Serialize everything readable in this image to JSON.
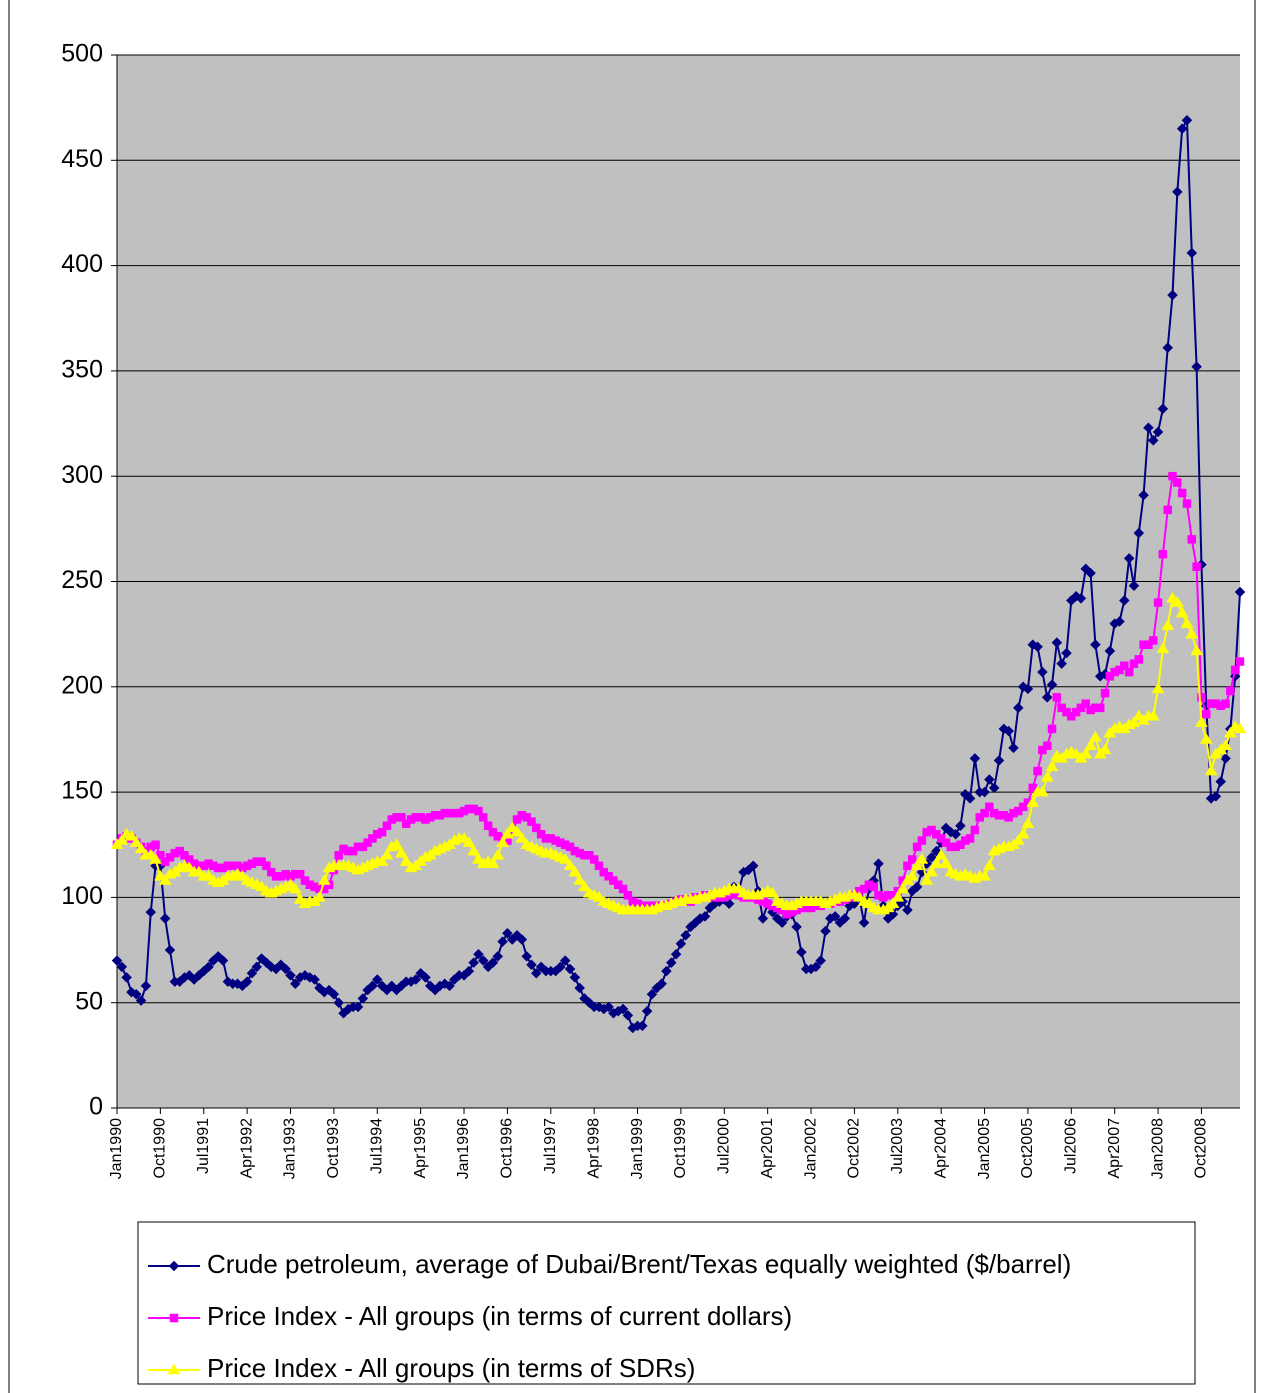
{
  "chart_data": {
    "type": "line",
    "categories": [
      "Jan1990",
      null,
      null,
      null,
      null,
      null,
      null,
      null,
      null,
      "Oct1990",
      null,
      null,
      null,
      null,
      null,
      null,
      null,
      null,
      "Jul1991",
      null,
      null,
      null,
      null,
      null,
      null,
      null,
      null,
      "Apr1992",
      null,
      null,
      null,
      null,
      null,
      null,
      null,
      null,
      "Jan1993",
      null,
      null,
      null,
      null,
      null,
      null,
      null,
      null,
      "Oct1993",
      null,
      null,
      null,
      null,
      null,
      null,
      null,
      null,
      "Jul1994",
      null,
      null,
      null,
      null,
      null,
      null,
      null,
      null,
      "Apr1995",
      null,
      null,
      null,
      null,
      null,
      null,
      null,
      null,
      "Jan1996",
      null,
      null,
      null,
      null,
      null,
      null,
      null,
      null,
      "Oct1996",
      null,
      null,
      null,
      null,
      null,
      null,
      null,
      null,
      "Jul1997",
      null,
      null,
      null,
      null,
      null,
      null,
      null,
      null,
      "Apr1998",
      null,
      null,
      null,
      null,
      null,
      null,
      null,
      null,
      "Jan1999",
      null,
      null,
      null,
      null,
      null,
      null,
      null,
      null,
      "Oct1999",
      null,
      null,
      null,
      null,
      null,
      null,
      null,
      null,
      "Jul2000",
      null,
      null,
      null,
      null,
      null,
      null,
      null,
      null,
      "Apr2001",
      null,
      null,
      null,
      null,
      null,
      null,
      null,
      null,
      "Jan2002",
      null,
      null,
      null,
      null,
      null,
      null,
      null,
      null,
      "Oct2002",
      null,
      null,
      null,
      null,
      null,
      null,
      null,
      null,
      "Jul2003",
      null,
      null,
      null,
      null,
      null,
      null,
      null,
      null,
      "Apr2004",
      null,
      null,
      null,
      null,
      null,
      null,
      null,
      null,
      "Jan2005",
      null,
      null,
      null,
      null,
      null,
      null,
      null,
      null,
      "Oct2005",
      null,
      null,
      null,
      null,
      null,
      null,
      null,
      null,
      "Jul2006",
      null,
      null,
      null,
      null,
      null,
      null,
      null,
      null,
      "Apr2007",
      null,
      null,
      null,
      null,
      null,
      null,
      null,
      null,
      "Jan2008",
      null,
      null,
      null,
      null,
      null,
      null,
      null,
      null,
      "Oct2008",
      null,
      null,
      null,
      null,
      null,
      null,
      null,
      null
    ],
    "series": [
      {
        "name": "Crude petroleum, average of Dubai/Brent/Texas equally weighted ($/barrel)",
        "color": "#000080",
        "marker": "diamond",
        "values": [
          70,
          67,
          62,
          55,
          54,
          51,
          58,
          93,
          115,
          115,
          90,
          75,
          60,
          60,
          62,
          63,
          61,
          63,
          65,
          67,
          70,
          72,
          70,
          60,
          59,
          59,
          58,
          60,
          64,
          67,
          71,
          69,
          67,
          66,
          68,
          66,
          63,
          59,
          62,
          63,
          62,
          61,
          57,
          55,
          56,
          54,
          50,
          45,
          47,
          48,
          48,
          52,
          56,
          58,
          61,
          58,
          56,
          58,
          56,
          58,
          60,
          60,
          61,
          64,
          62,
          58,
          56,
          58,
          59,
          58,
          61,
          63,
          63,
          65,
          69,
          73,
          70,
          67,
          69,
          72,
          79,
          83,
          80,
          82,
          80,
          72,
          68,
          64,
          67,
          65,
          65,
          65,
          67,
          70,
          66,
          62,
          57,
          52,
          50,
          48,
          48,
          47,
          48,
          45,
          46,
          47,
          44,
          38,
          39,
          39,
          46,
          54,
          57,
          59,
          65,
          69,
          73,
          78,
          82,
          86,
          88,
          90,
          91,
          95,
          97,
          98,
          99,
          97,
          105,
          103,
          112,
          113,
          115,
          103,
          90,
          97,
          93,
          90,
          88,
          91,
          92,
          86,
          74,
          66,
          66,
          67,
          70,
          84,
          90,
          91,
          88,
          90,
          96,
          97,
          100,
          88,
          104,
          108,
          116,
          96,
          90,
          92,
          96,
          98,
          94,
          103,
          105,
          112,
          116,
          119,
          122,
          126,
          133,
          131,
          130,
          134,
          149,
          147,
          166,
          150,
          150,
          156,
          152,
          165,
          180,
          179,
          171,
          190,
          200,
          199,
          220,
          219,
          207,
          195,
          201,
          221,
          211,
          216,
          241,
          243,
          242,
          256,
          254,
          220,
          205,
          206,
          217,
          230,
          231,
          241,
          261,
          248,
          273,
          291,
          323,
          317,
          321,
          332,
          361,
          386,
          435,
          465,
          469,
          406,
          352,
          258,
          191,
          147,
          148,
          155,
          166,
          180,
          205,
          245
        ]
      },
      {
        "name": "Price Index - All groups (in terms of current dollars)",
        "color": "#ff00ff",
        "marker": "square",
        "values": [
          125,
          128,
          129,
          128,
          126,
          124,
          122,
          124,
          125,
          120,
          117,
          119,
          121,
          122,
          120,
          118,
          116,
          115,
          115,
          116,
          115,
          114,
          114,
          115,
          115,
          115,
          114,
          115,
          116,
          117,
          117,
          115,
          112,
          110,
          110,
          111,
          110,
          111,
          111,
          108,
          106,
          105,
          104,
          104,
          106,
          113,
          120,
          123,
          122,
          122,
          124,
          124,
          126,
          128,
          130,
          131,
          134,
          137,
          138,
          138,
          135,
          137,
          138,
          138,
          137,
          138,
          139,
          139,
          140,
          140,
          140,
          140,
          141,
          142,
          142,
          141,
          138,
          134,
          131,
          129,
          128,
          127,
          131,
          137,
          139,
          138,
          136,
          133,
          130,
          128,
          128,
          127,
          126,
          125,
          124,
          122,
          121,
          120,
          120,
          118,
          115,
          112,
          110,
          108,
          106,
          104,
          101,
          98,
          97,
          96,
          96,
          96,
          96,
          96,
          96,
          97,
          98,
          99,
          99,
          98,
          100,
          100,
          101,
          101,
          100,
          100,
          100,
          101,
          102,
          101,
          100,
          100,
          100,
          99,
          98,
          97,
          96,
          95,
          94,
          92,
          93,
          94,
          95,
          95,
          95,
          96,
          96,
          97,
          97,
          98,
          98,
          99,
          100,
          101,
          103,
          104,
          106,
          105,
          101,
          100,
          101,
          101,
          103,
          108,
          115,
          118,
          124,
          127,
          131,
          132,
          130,
          128,
          126,
          124,
          124,
          125,
          127,
          128,
          132,
          138,
          140,
          143,
          140,
          139,
          139,
          138,
          140,
          141,
          143,
          145,
          152,
          160,
          170,
          172,
          180,
          195,
          190,
          188,
          186,
          188,
          190,
          192,
          189,
          190,
          190,
          197,
          205,
          207,
          208,
          210,
          207,
          211,
          213,
          220,
          220,
          222,
          240,
          263,
          284,
          300,
          297,
          292,
          287,
          270,
          257,
          195,
          187,
          192,
          192,
          191,
          192,
          198,
          208,
          212
        ]
      },
      {
        "name": "Price Index - All groups (in terms of SDRs)",
        "color": "#ffff00",
        "marker": "triangle",
        "values": [
          125,
          127,
          130,
          129,
          126,
          123,
          120,
          120,
          118,
          110,
          108,
          111,
          112,
          114,
          115,
          114,
          112,
          112,
          110,
          110,
          108,
          107,
          108,
          110,
          110,
          111,
          110,
          108,
          107,
          106,
          105,
          103,
          102,
          103,
          104,
          105,
          106,
          104,
          99,
          97,
          98,
          98,
          100,
          108,
          114,
          115,
          115,
          115,
          115,
          114,
          113,
          114,
          115,
          116,
          117,
          117,
          120,
          124,
          125,
          121,
          117,
          114,
          115,
          117,
          119,
          120,
          122,
          123,
          124,
          125,
          127,
          128,
          128,
          126,
          122,
          118,
          116,
          117,
          116,
          120,
          126,
          130,
          133,
          131,
          128,
          125,
          124,
          123,
          122,
          121,
          121,
          120,
          119,
          118,
          115,
          112,
          108,
          105,
          102,
          101,
          100,
          98,
          97,
          96,
          95,
          94,
          94,
          94,
          94,
          94,
          94,
          94,
          95,
          96,
          96,
          97,
          98,
          98,
          99,
          99,
          99,
          100,
          100,
          101,
          102,
          102,
          103,
          104,
          104,
          104,
          102,
          101,
          101,
          101,
          102,
          103,
          102,
          98,
          97,
          96,
          96,
          97,
          98,
          98,
          98,
          98,
          98,
          97,
          98,
          99,
          100,
          100,
          101,
          101,
          100,
          98,
          97,
          95,
          94,
          94,
          95,
          97,
          100,
          104,
          108,
          110,
          115,
          118,
          108,
          112,
          116,
          120,
          116,
          112,
          111,
          110,
          111,
          110,
          109,
          110,
          110,
          115,
          122,
          123,
          124,
          124,
          125,
          127,
          130,
          135,
          145,
          150,
          150,
          157,
          162,
          167,
          166,
          168,
          169,
          168,
          166,
          168,
          172,
          176,
          168,
          170,
          178,
          180,
          181,
          180,
          182,
          183,
          186,
          184,
          186,
          186,
          199,
          218,
          229,
          242,
          240,
          235,
          230,
          225,
          217,
          183,
          175,
          160,
          168,
          170,
          172,
          178,
          181,
          180
        ]
      }
    ],
    "ylim": [
      0,
      500
    ],
    "yticks": [
      0,
      50,
      100,
      150,
      200,
      250,
      300,
      350,
      400,
      450,
      500
    ],
    "grid": true,
    "legend": "bottom"
  }
}
